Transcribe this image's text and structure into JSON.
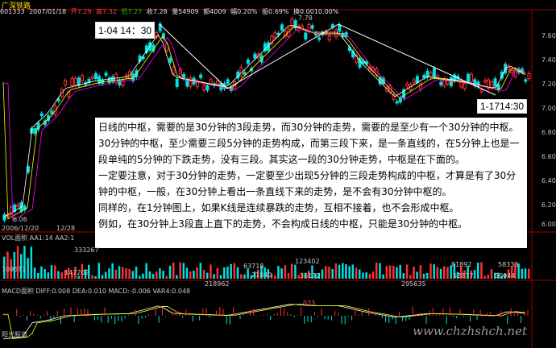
{
  "header": {
    "title": "广深铁路",
    "code": "601333",
    "date": "2007/01/18",
    "fields": [
      {
        "text": "开7.29",
        "color": "red"
      },
      {
        "text": "高7.32",
        "color": "red"
      },
      {
        "text": "低7.27",
        "color": "grn"
      },
      {
        "text": "收7.28",
        "color": "wht"
      },
      {
        "text": "量54909",
        "color": "wht"
      },
      {
        "text": "额4009",
        "color": "wht"
      },
      {
        "text": "幅0.20%",
        "color": "wht"
      },
      {
        "text": "振0.69%",
        "color": "wht"
      },
      {
        "text": "换0.0010.00%",
        "color": "wht"
      }
    ],
    "peak_label": "7.78"
  },
  "price_axis": [
    "7.60",
    "7.40",
    "7.20",
    "7.00",
    "6.80",
    "6.60",
    "6.40",
    "6.20",
    "6.00"
  ],
  "annotations": {
    "label_left": "1-04 14：30",
    "label_right": "1-1714:30",
    "low_label": "6.06",
    "date_start": "2006/12/20",
    "date_mid": "12/28"
  },
  "note": {
    "paragraphs": [
      "日线的中枢，需要的是30分钟的3段走势，而30分钟的走势，需要的是至少有一个30分钟的中枢。30分钟的中枢，至少需要三段5分钟的走势构成，而第三段下来，是一条直线的，在5分钟上也是一段单纯的5分钟的下跌走势，没有三段。其实这一段的30分钟走势，中枢是在下面的。",
      "一定要注意，对于30分钟的走势，一定要至少出现5分钟的三段走势构成的中枢，才算是有了30分钟的中枢，一般，在30分钟上看出一条直线下来的走势，是不会有30分钟中枢的。",
      "同样的，在1分钟图上，如果K线是连续暴跌的走势，互相不接着，也不会形成中枢。",
      "例如，在30分钟上3段直上直下的走势，不会构成日线的中枢，只能是30分钟的中枢。"
    ]
  },
  "volume": {
    "legend": "VOL面积  AA1:14  AA2:1",
    "labels": [
      "333267",
      "1095T1",
      "147202",
      "63718",
      "123402",
      "218962",
      "21840",
      "36172",
      "295635",
      "81892",
      "58333",
      "52877",
      "50044"
    ]
  },
  "macd": {
    "legend": "MACD面积  DIFF:0.008  DEA:0.010  MACD:-0.006  VAR4:0.048",
    "label_mid": "023",
    "bottom_label": "阳光股道"
  },
  "watermark": "www.chzhshch.net"
}
